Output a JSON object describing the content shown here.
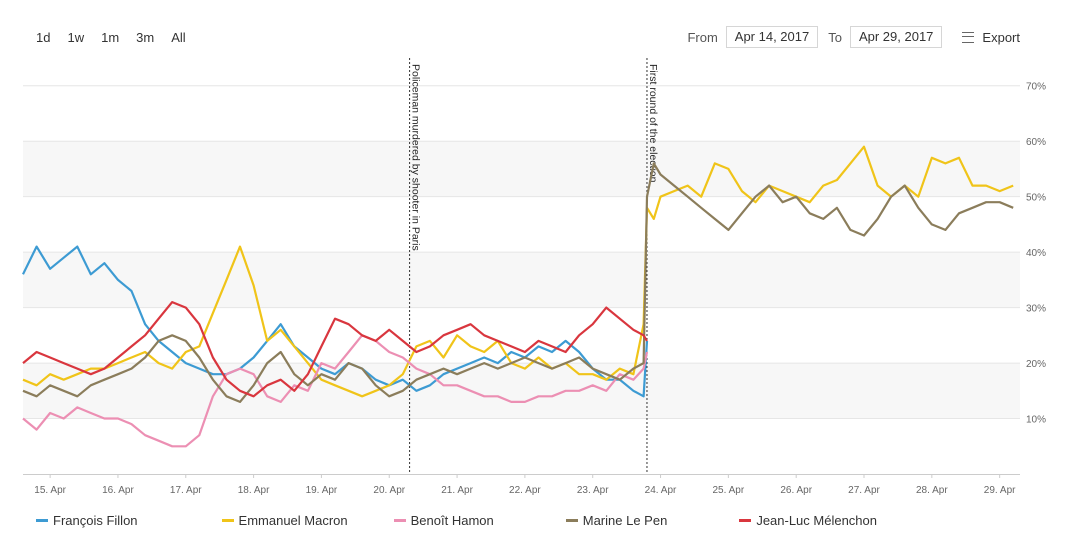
{
  "range_selector": [
    "1d",
    "1w",
    "1m",
    "3m",
    "All"
  ],
  "date_range": {
    "from_label": "From",
    "from_value": "Apr 14, 2017",
    "to_label": "To",
    "to_value": "Apr 29, 2017"
  },
  "export_label": "Export",
  "chart_data": {
    "type": "line",
    "xlabel": "",
    "ylabel": "",
    "x_unit": "day of April 2017",
    "xlim": [
      14.6,
      29.3
    ],
    "ylim": [
      0,
      75
    ],
    "y_ticks": [
      10,
      20,
      30,
      40,
      50,
      60,
      70
    ],
    "y_tick_labels": [
      "10%",
      "20%",
      "30%",
      "40%",
      "50%",
      "60%",
      "70%"
    ],
    "x_ticks": [
      15,
      16,
      17,
      18,
      19,
      20,
      21,
      22,
      23,
      24,
      25,
      26,
      27,
      28,
      29
    ],
    "x_tick_labels": [
      "15. Apr",
      "16. Apr",
      "17. Apr",
      "18. Apr",
      "19. Apr",
      "20. Apr",
      "21. Apr",
      "22. Apr",
      "23. Apr",
      "24. Apr",
      "25. Apr",
      "26. Apr",
      "27. Apr",
      "28. Apr",
      "29. Apr"
    ],
    "grid": "horizontal alternating bands",
    "legend_position": "bottom",
    "annotations": [
      {
        "x": 20.3,
        "text": "Policeman murdered by shooter in Paris"
      },
      {
        "x": 23.8,
        "text": "First round of the election"
      }
    ],
    "series": [
      {
        "name": "François Fillon",
        "color": "#3d9bd3",
        "x": [
          14.6,
          14.8,
          15.0,
          15.2,
          15.4,
          15.6,
          15.8,
          16.0,
          16.2,
          16.4,
          16.6,
          16.8,
          17.0,
          17.2,
          17.4,
          17.6,
          17.8,
          18.0,
          18.2,
          18.4,
          18.6,
          18.8,
          19.0,
          19.2,
          19.4,
          19.6,
          19.8,
          20.0,
          20.2,
          20.4,
          20.6,
          20.8,
          21.0,
          21.2,
          21.4,
          21.6,
          21.8,
          22.0,
          22.2,
          22.4,
          22.6,
          22.8,
          23.0,
          23.2,
          23.4,
          23.6,
          23.75,
          23.8
        ],
        "y": [
          36,
          41,
          37,
          39,
          41,
          36,
          38,
          35,
          33,
          27,
          24,
          22,
          20,
          19,
          18,
          18,
          19,
          21,
          24,
          27,
          23,
          21,
          19,
          18,
          20,
          19,
          17,
          16,
          17,
          15,
          16,
          18,
          19,
          20,
          21,
          20,
          22,
          21,
          23,
          22,
          24,
          22,
          19,
          17,
          17,
          15,
          14,
          24
        ]
      },
      {
        "name": "Emmanuel Macron",
        "color": "#f0c419",
        "x": [
          14.6,
          14.8,
          15.0,
          15.2,
          15.4,
          15.6,
          15.8,
          16.0,
          16.2,
          16.4,
          16.6,
          16.8,
          17.0,
          17.2,
          17.4,
          17.6,
          17.8,
          18.0,
          18.2,
          18.4,
          18.6,
          18.8,
          19.0,
          19.2,
          19.4,
          19.6,
          19.8,
          20.0,
          20.2,
          20.4,
          20.6,
          20.8,
          21.0,
          21.2,
          21.4,
          21.6,
          21.8,
          22.0,
          22.2,
          22.4,
          22.6,
          22.8,
          23.0,
          23.2,
          23.4,
          23.6,
          23.75,
          23.8,
          23.9,
          24.0,
          24.2,
          24.4,
          24.6,
          24.8,
          25.0,
          25.2,
          25.4,
          25.6,
          25.8,
          26.0,
          26.2,
          26.4,
          26.6,
          26.8,
          27.0,
          27.2,
          27.4,
          27.6,
          27.8,
          28.0,
          28.2,
          28.4,
          28.6,
          28.8,
          29.0,
          29.2
        ],
        "y": [
          17,
          16,
          18,
          17,
          18,
          19,
          19,
          20,
          21,
          22,
          20,
          19,
          22,
          23,
          29,
          35,
          41,
          34,
          24,
          26,
          23,
          20,
          17,
          16,
          15,
          14,
          15,
          16,
          18,
          23,
          24,
          21,
          25,
          23,
          22,
          24,
          20,
          19,
          21,
          19,
          20,
          18,
          18,
          17,
          19,
          18,
          27,
          48,
          46,
          50,
          51,
          52,
          50,
          56,
          55,
          51,
          49,
          52,
          51,
          50,
          49,
          52,
          53,
          56,
          59,
          52,
          50,
          52,
          50,
          57,
          56,
          57,
          52,
          52,
          51,
          52
        ]
      },
      {
        "name": "Benoît Hamon",
        "color": "#ec8fb3",
        "x": [
          14.6,
          14.8,
          15.0,
          15.2,
          15.4,
          15.6,
          15.8,
          16.0,
          16.2,
          16.4,
          16.6,
          16.8,
          17.0,
          17.2,
          17.4,
          17.6,
          17.8,
          18.0,
          18.2,
          18.4,
          18.6,
          18.8,
          19.0,
          19.2,
          19.4,
          19.6,
          19.8,
          20.0,
          20.2,
          20.4,
          20.6,
          20.8,
          21.0,
          21.2,
          21.4,
          21.6,
          21.8,
          22.0,
          22.2,
          22.4,
          22.6,
          22.8,
          23.0,
          23.2,
          23.4,
          23.6,
          23.75,
          23.8
        ],
        "y": [
          10,
          8,
          11,
          10,
          12,
          11,
          10,
          10,
          9,
          7,
          6,
          5,
          5,
          7,
          14,
          18,
          19,
          18,
          14,
          13,
          16,
          15,
          20,
          19,
          22,
          25,
          24,
          22,
          21,
          19,
          18,
          16,
          16,
          15,
          14,
          14,
          13,
          13,
          14,
          14,
          15,
          15,
          16,
          15,
          18,
          17,
          19,
          22
        ]
      },
      {
        "name": "Marine Le Pen",
        "color": "#8b7d5b",
        "x": [
          14.6,
          14.8,
          15.0,
          15.2,
          15.4,
          15.6,
          15.8,
          16.0,
          16.2,
          16.4,
          16.6,
          16.8,
          17.0,
          17.2,
          17.4,
          17.6,
          17.8,
          18.0,
          18.2,
          18.4,
          18.6,
          18.8,
          19.0,
          19.2,
          19.4,
          19.6,
          19.8,
          20.0,
          20.2,
          20.4,
          20.6,
          20.8,
          21.0,
          21.2,
          21.4,
          21.6,
          21.8,
          22.0,
          22.2,
          22.4,
          22.6,
          22.8,
          23.0,
          23.2,
          23.4,
          23.6,
          23.75,
          23.8,
          23.9,
          24.0,
          24.2,
          24.4,
          24.6,
          24.8,
          25.0,
          25.2,
          25.4,
          25.6,
          25.8,
          26.0,
          26.2,
          26.4,
          26.6,
          26.8,
          27.0,
          27.2,
          27.4,
          27.6,
          27.8,
          28.0,
          28.2,
          28.4,
          28.6,
          28.8,
          29.0,
          29.2
        ],
        "y": [
          15,
          14,
          16,
          15,
          14,
          16,
          17,
          18,
          19,
          21,
          24,
          25,
          24,
          21,
          17,
          14,
          13,
          16,
          20,
          22,
          18,
          16,
          18,
          17,
          20,
          19,
          16,
          14,
          15,
          17,
          18,
          19,
          18,
          19,
          20,
          19,
          20,
          21,
          20,
          19,
          20,
          21,
          19,
          18,
          17,
          19,
          20,
          50,
          56,
          54,
          52,
          50,
          48,
          46,
          44,
          47,
          50,
          52,
          49,
          50,
          47,
          46,
          48,
          44,
          43,
          46,
          50,
          52,
          48,
          45,
          44,
          47,
          48,
          49,
          49,
          48
        ]
      },
      {
        "name": "Jean-Luc Mélenchon",
        "color": "#d9363e",
        "x": [
          14.6,
          14.8,
          15.0,
          15.2,
          15.4,
          15.6,
          15.8,
          16.0,
          16.2,
          16.4,
          16.6,
          16.8,
          17.0,
          17.2,
          17.4,
          17.6,
          17.8,
          18.0,
          18.2,
          18.4,
          18.6,
          18.8,
          19.0,
          19.2,
          19.4,
          19.6,
          19.8,
          20.0,
          20.2,
          20.4,
          20.6,
          20.8,
          21.0,
          21.2,
          21.4,
          21.6,
          21.8,
          22.0,
          22.2,
          22.4,
          22.6,
          22.8,
          23.0,
          23.2,
          23.4,
          23.6,
          23.75,
          23.8
        ],
        "y": [
          20,
          22,
          21,
          20,
          19,
          18,
          19,
          21,
          23,
          25,
          28,
          31,
          30,
          27,
          21,
          17,
          15,
          14,
          16,
          17,
          15,
          18,
          23,
          28,
          27,
          25,
          24,
          26,
          24,
          22,
          23,
          25,
          26,
          27,
          25,
          24,
          23,
          22,
          24,
          23,
          22,
          25,
          27,
          30,
          28,
          26,
          25,
          24
        ]
      }
    ]
  },
  "legend": [
    "François Fillon",
    "Emmanuel Macron",
    "Benoît Hamon",
    "Marine Le Pen",
    "Jean-Luc Mélenchon"
  ],
  "legend_colors": [
    "#3d9bd3",
    "#f0c419",
    "#ec8fb3",
    "#8b7d5b",
    "#d9363e"
  ]
}
